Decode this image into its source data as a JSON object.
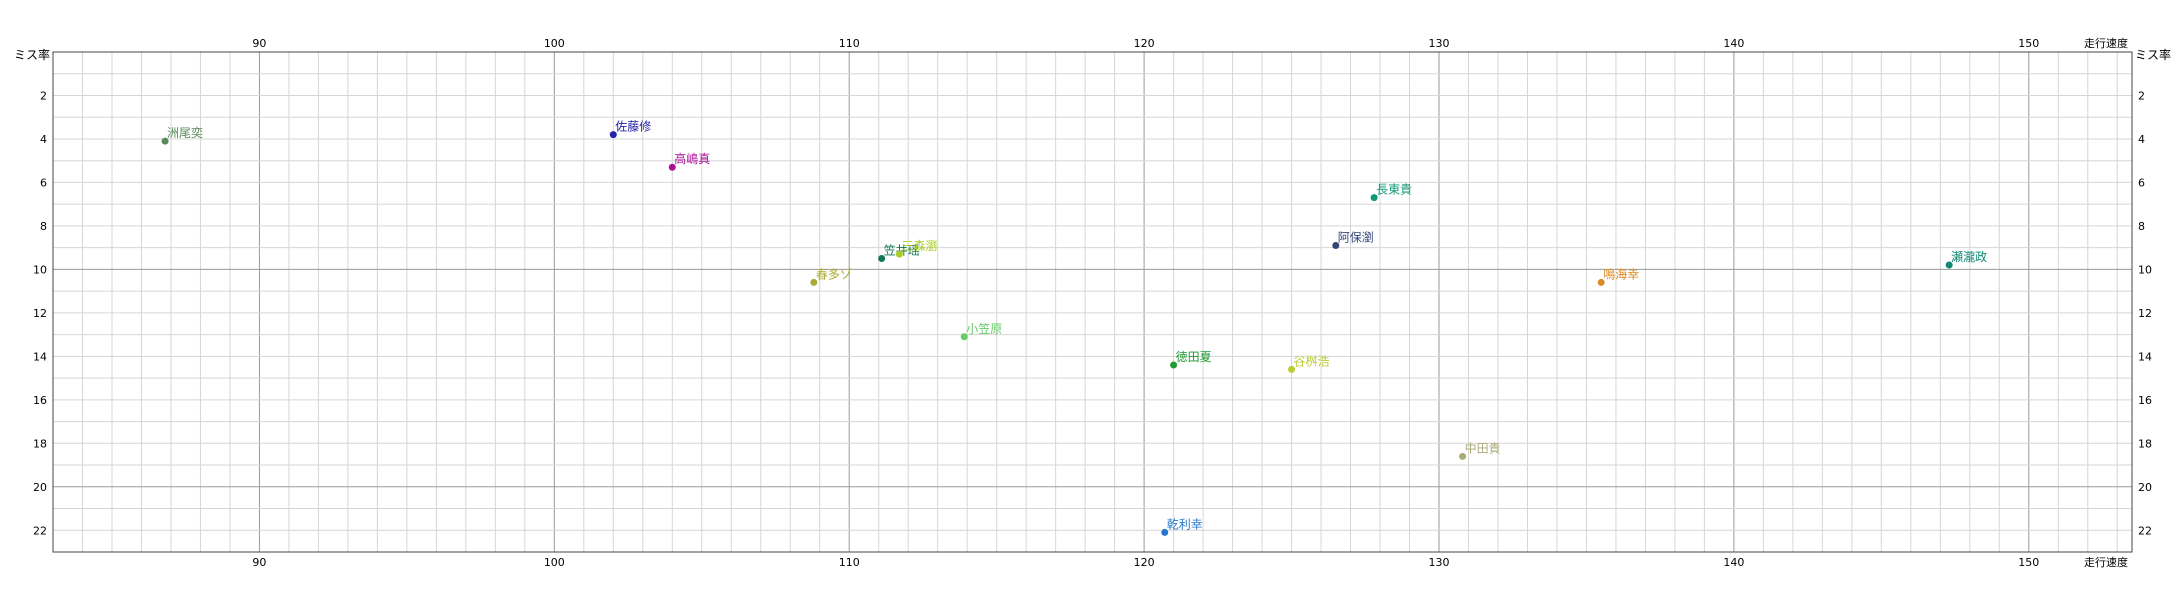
{
  "chart_data": {
    "type": "scatter",
    "title": "",
    "xlabel": "走行速度",
    "ylabel": "ミス率",
    "xlim": [
      83,
      153.5
    ],
    "ylim": [
      0,
      23
    ],
    "y_inverted": true,
    "x_ticks": [
      90,
      100,
      110,
      120,
      130,
      140,
      150
    ],
    "y_ticks": [
      2,
      4,
      6,
      8,
      10,
      12,
      14,
      16,
      18,
      20,
      22
    ],
    "grid": true,
    "x_axis_labels": "top-and-bottom",
    "y_axis_labels": "left-and-right",
    "points": [
      {
        "label": "洲尾奕",
        "x": 86.8,
        "y": 4.1,
        "color": "#5a8a5a"
      },
      {
        "label": "佐藤修",
        "x": 102.0,
        "y": 3.8,
        "color": "#2222aa"
      },
      {
        "label": "高嶋真",
        "x": 104.0,
        "y": 5.3,
        "color": "#aa1199"
      },
      {
        "label": "長東貴",
        "x": 127.8,
        "y": 6.7,
        "color": "#119977"
      },
      {
        "label": "阿保瀏",
        "x": 126.5,
        "y": 8.9,
        "color": "#334477"
      },
      {
        "label": "笠井瑶",
        "x": 111.1,
        "y": 9.5,
        "color": "#117755"
      },
      {
        "label": "三森瀏",
        "x": 111.7,
        "y": 9.3,
        "color": "#aacc22"
      },
      {
        "label": "瀬瀧政",
        "x": 147.3,
        "y": 9.8,
        "color": "#118877"
      },
      {
        "label": "鳴海幸",
        "x": 135.5,
        "y": 10.6,
        "color": "#dd8822"
      },
      {
        "label": "春多ゾ",
        "x": 108.8,
        "y": 10.6,
        "color": "#aaaa33"
      },
      {
        "label": "小笠原",
        "x": 113.9,
        "y": 13.1,
        "color": "#66cc66"
      },
      {
        "label": "徳田夏",
        "x": 121.0,
        "y": 14.4,
        "color": "#229933"
      },
      {
        "label": "谷桝浩",
        "x": 125.0,
        "y": 14.6,
        "color": "#bbcc33"
      },
      {
        "label": "中田貴",
        "x": 130.8,
        "y": 18.6,
        "color": "#aaaa77"
      },
      {
        "label": "乾利幸",
        "x": 120.7,
        "y": 22.1,
        "color": "#2277cc"
      }
    ]
  }
}
